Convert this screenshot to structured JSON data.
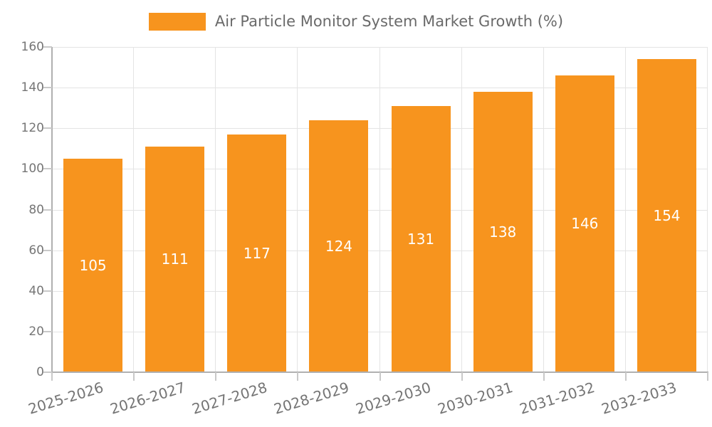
{
  "legend": {
    "label": "Air Particle Monitor System Market Growth (%)",
    "swatch_color": "#F7941E"
  },
  "chart_data": {
    "type": "bar",
    "title": "Air Particle Monitor System Market Growth (%)",
    "categories": [
      "2025-2026",
      "2026-2027",
      "2027-2028",
      "2028-2029",
      "2029-2030",
      "2030-2031",
      "2031-2032",
      "2032-2033"
    ],
    "values": [
      105,
      111,
      117,
      124,
      131,
      138,
      146,
      154
    ],
    "xlabel": "",
    "ylabel": "",
    "ylim": [
      0,
      160
    ],
    "yticks": [
      0,
      20,
      40,
      60,
      80,
      100,
      120,
      140,
      160
    ],
    "grid": "on",
    "legend_position": "top-center",
    "bar_labels_inside": true
  },
  "colors": {
    "bar": "#F7941E",
    "grid": "#E4E4E4",
    "axis": "#B0B0B0",
    "tick": "#C9C9C9",
    "tick_label": "#757575",
    "title": "#6A6A6A",
    "value_label": "#FFFFFF",
    "background": "#FFFFFF"
  }
}
